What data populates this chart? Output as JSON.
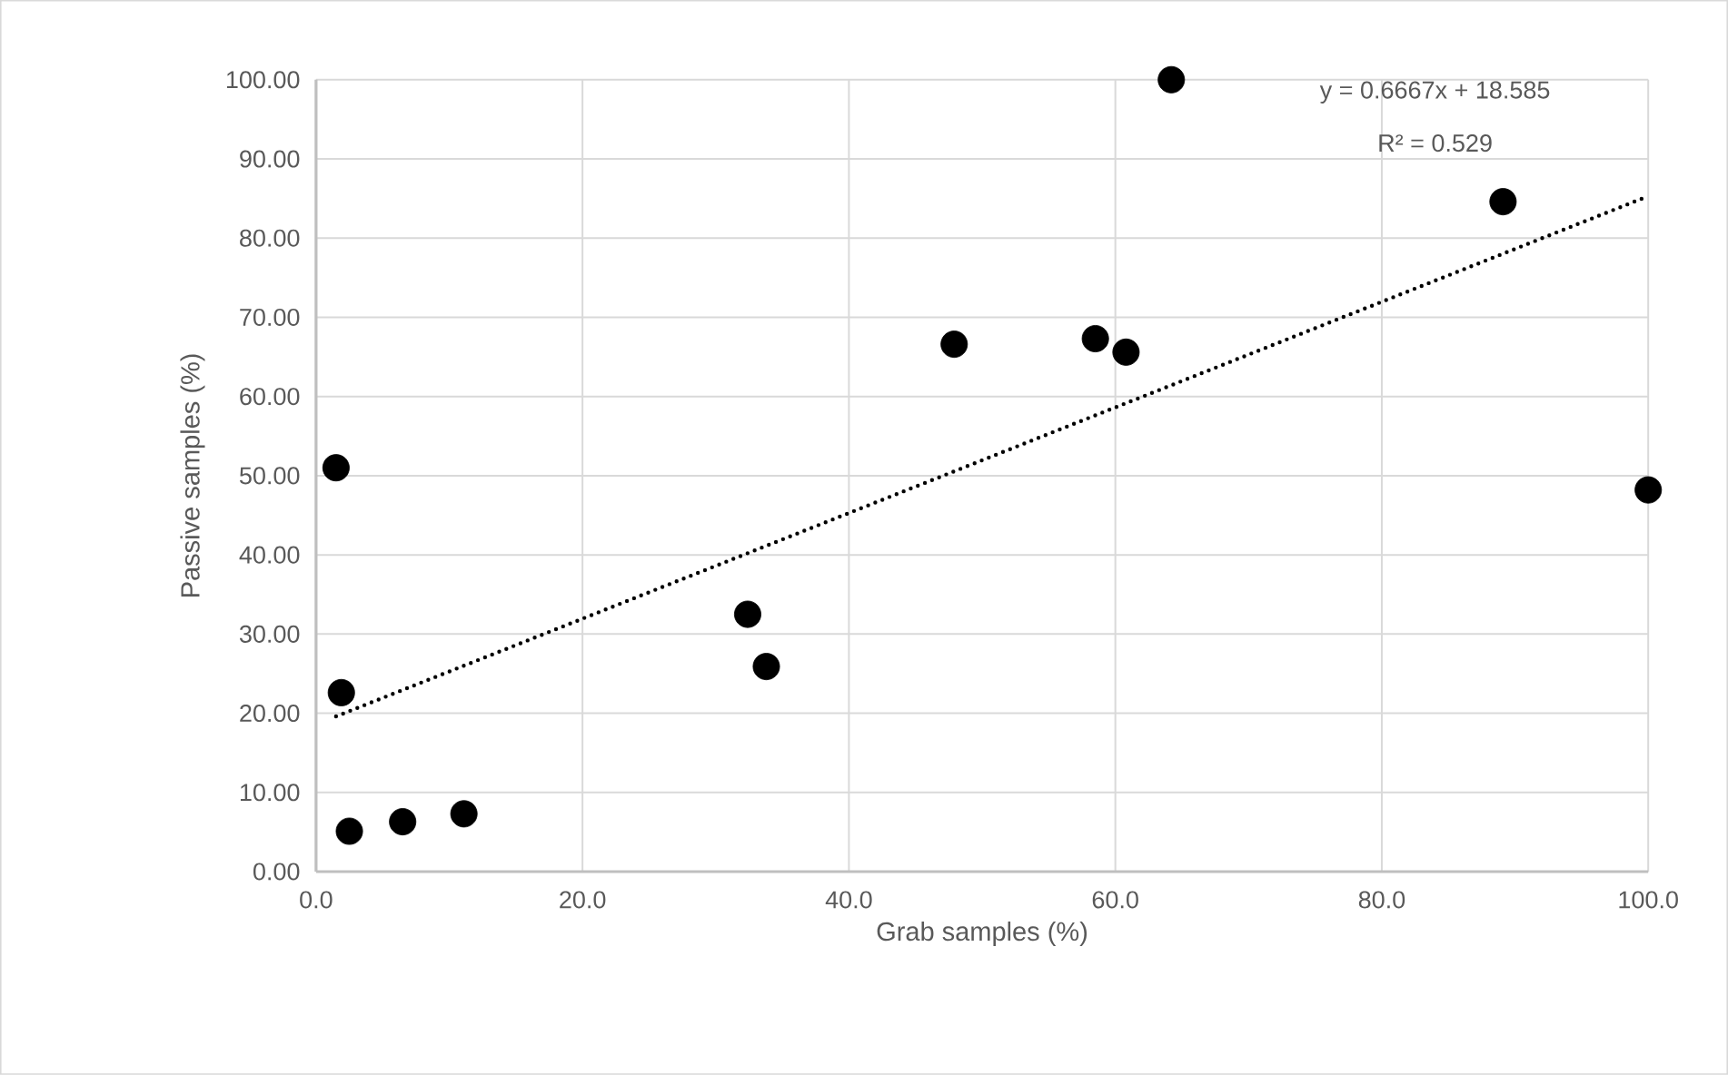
{
  "chart_data": {
    "type": "scatter",
    "xlabel": "Grab samples (%)",
    "ylabel": "Passive samples  (%)",
    "annotations": [
      "y = 0.6667x + 18.585",
      "R² = 0.529"
    ],
    "xlim": [
      0,
      100
    ],
    "ylim": [
      0,
      100
    ],
    "xticks": [
      {
        "value": 0,
        "label": "0.0"
      },
      {
        "value": 20,
        "label": "20.0"
      },
      {
        "value": 40,
        "label": "40.0"
      },
      {
        "value": 60,
        "label": "60.0"
      },
      {
        "value": 80,
        "label": "80.0"
      },
      {
        "value": 100,
        "label": "100.0"
      }
    ],
    "yticks": [
      {
        "value": 0,
        "label": "0.00"
      },
      {
        "value": 10,
        "label": "10.00"
      },
      {
        "value": 20,
        "label": "20.00"
      },
      {
        "value": 30,
        "label": "30.00"
      },
      {
        "value": 40,
        "label": "40.00"
      },
      {
        "value": 50,
        "label": "50.00"
      },
      {
        "value": 60,
        "label": "60.00"
      },
      {
        "value": 70,
        "label": "70.00"
      },
      {
        "value": 80,
        "label": "80.00"
      },
      {
        "value": 90,
        "label": "90.00"
      },
      {
        "value": 100,
        "label": "100.00"
      }
    ],
    "grid": true,
    "series": [
      {
        "type": "scatter",
        "color": "#000000",
        "marker": "circle",
        "x": [
          1.5,
          1.9,
          2.5,
          6.5,
          11.1,
          32.4,
          33.8,
          47.9,
          58.5,
          60.8,
          64.2,
          89.1,
          100
        ],
        "values": [
          51.0,
          22.6,
          5.1,
          6.3,
          7.3,
          32.5,
          25.9,
          66.6,
          67.3,
          65.6,
          100.0,
          84.6,
          48.2
        ]
      },
      {
        "type": "line",
        "color": "#000000",
        "marker": "none",
        "line_style": "dotted",
        "x": [
          1.5,
          100
        ],
        "values": [
          19.6,
          85.3
        ]
      }
    ]
  }
}
